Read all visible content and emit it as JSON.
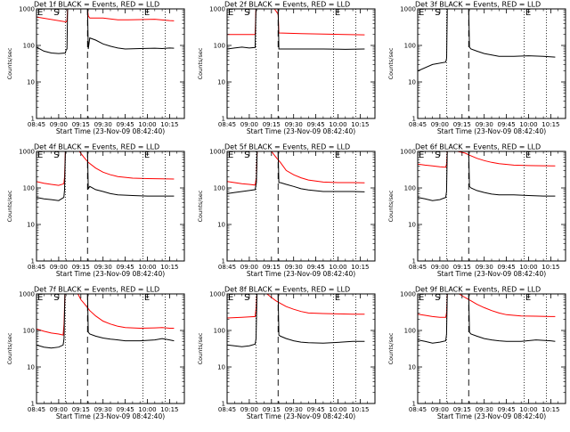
{
  "chart_data": [
    {
      "type": "line",
      "title": "Det 1f BLACK = Events, RED = LLD",
      "xlabel": "Start Time (23-Nov-09 08:42:40)",
      "ylabel": "Counts/sec",
      "yscale": "log",
      "ylim": [
        1,
        1000
      ],
      "xlim": [
        0,
        100
      ],
      "yticks": [
        "1",
        "10",
        "100",
        "1000"
      ],
      "xticks": [
        "08:45",
        "09:00",
        "09:15",
        "09:30",
        "09:45",
        "10:00",
        "10:15"
      ],
      "marks": [
        "E",
        "S",
        "E"
      ],
      "series": [
        {
          "name": "LLD",
          "color": "#ff0000",
          "x": [
            0,
            20,
            20.6,
            21,
            22,
            34.5,
            35,
            36,
            45,
            55,
            62,
            70,
            80,
            90,
            93
          ],
          "y": [
            600,
            440,
            480,
            1000,
            1000,
            1000,
            640,
            560,
            560,
            500,
            500,
            510,
            520,
            480,
            470
          ]
        },
        {
          "name": "Events",
          "color": "#000000",
          "x": [
            0,
            5,
            10,
            15,
            19.5,
            20,
            20.6,
            21,
            22,
            34.5,
            35,
            36,
            40,
            45,
            50,
            55,
            60,
            70,
            80,
            85,
            90,
            93
          ],
          "y": [
            90,
            70,
            62,
            60,
            62,
            75,
            80,
            1000,
            1000,
            1000,
            80,
            160,
            140,
            110,
            95,
            85,
            80,
            82,
            84,
            82,
            85,
            84
          ]
        }
      ]
    },
    {
      "type": "line",
      "title": "Det 2f BLACK = Events, RED = LLD",
      "xlabel": "Start Time (23-Nov-09 08:42:40)",
      "ylabel": "Counts/sec",
      "yscale": "log",
      "ylim": [
        1,
        1000
      ],
      "xlim": [
        0,
        100
      ],
      "yticks": [
        "1",
        "10",
        "100",
        "1000"
      ],
      "xticks": [
        "08:45",
        "09:00",
        "09:15",
        "09:30",
        "09:45",
        "10:00",
        "10:15"
      ],
      "marks": [
        "E",
        "S",
        "E"
      ],
      "series": [
        {
          "name": "LLD",
          "color": "#ff0000",
          "x": [
            0,
            19,
            19.5,
            25,
            26,
            32,
            34.5,
            35,
            50,
            65,
            80,
            93
          ],
          "y": [
            200,
            200,
            1000,
            1000,
            1000,
            1000,
            720,
            220,
            210,
            205,
            200,
            195
          ]
        },
        {
          "name": "Events",
          "color": "#000000",
          "x": [
            0,
            5,
            10,
            15,
            19,
            19.5,
            33,
            34.5,
            35,
            50,
            65,
            80,
            93
          ],
          "y": [
            80,
            85,
            90,
            85,
            88,
            1000,
            1000,
            1000,
            80,
            80,
            80,
            78,
            80
          ]
        }
      ]
    },
    {
      "type": "line",
      "title": "Det 3f BLACK = Events, RED = LLD",
      "xlabel": "Start Time (23-Nov-09 08:42:40)",
      "ylabel": "Counts/sec",
      "yscale": "log",
      "ylim": [
        1,
        1000
      ],
      "xlim": [
        0,
        100
      ],
      "yticks": [
        "1",
        "10",
        "100",
        "1000"
      ],
      "xticks": [
        "08:45",
        "09:00",
        "09:15",
        "09:30",
        "09:45",
        "10:00",
        "10:15"
      ],
      "marks": [
        "E",
        "S",
        "E"
      ],
      "series": [
        {
          "name": "LLD",
          "color": "#ff0000",
          "x": [
            0,
            20,
            35,
            60,
            80,
            93
          ],
          "y": [
            1000,
            1000,
            1000,
            1000,
            1000,
            1000
          ]
        },
        {
          "name": "Events",
          "color": "#000000",
          "x": [
            0,
            10,
            19,
            19.6,
            20,
            34.5,
            35,
            36,
            40,
            45,
            55,
            65,
            75,
            85,
            93
          ],
          "y": [
            20,
            30,
            35,
            45,
            1000,
            1000,
            90,
            80,
            70,
            60,
            50,
            50,
            52,
            50,
            48
          ]
        }
      ]
    },
    {
      "type": "line",
      "title": "Det 4f BLACK = Events, RED = LLD",
      "xlabel": "Start Time (23-Nov-09 08:42:40)",
      "ylabel": "Counts/sec",
      "yscale": "log",
      "ylim": [
        1,
        1000
      ],
      "xlim": [
        0,
        100
      ],
      "yticks": [
        "1",
        "10",
        "100",
        "1000"
      ],
      "xticks": [
        "08:45",
        "09:00",
        "09:15",
        "09:30",
        "09:45",
        "10:00",
        "10:15"
      ],
      "marks": [
        "E",
        "S",
        "E"
      ],
      "series": [
        {
          "name": "LLD",
          "color": "#ff0000",
          "x": [
            0,
            5,
            10,
            15,
            18.5,
            19,
            19.5,
            29,
            32,
            35,
            40,
            45,
            50,
            55,
            65,
            75,
            85,
            93
          ],
          "y": [
            150,
            135,
            125,
            118,
            130,
            200,
            1000,
            1000,
            700,
            500,
            350,
            270,
            230,
            205,
            185,
            180,
            178,
            175
          ]
        },
        {
          "name": "Events",
          "color": "#000000",
          "x": [
            0,
            5,
            10,
            15,
            18.5,
            19,
            19.5,
            34.5,
            35,
            36,
            40,
            45,
            50,
            55,
            65,
            75,
            85,
            93
          ],
          "y": [
            55,
            50,
            48,
            45,
            55,
            90,
            1000,
            1000,
            95,
            110,
            90,
            80,
            70,
            65,
            62,
            60,
            60,
            60
          ]
        }
      ]
    },
    {
      "type": "line",
      "title": "Det 5f BLACK = Events, RED = LLD",
      "xlabel": "Start Time (23-Nov-09 08:42:40)",
      "ylabel": "Counts/sec",
      "yscale": "log",
      "ylim": [
        1,
        1000
      ],
      "xlim": [
        0,
        100
      ],
      "yticks": [
        "1",
        "10",
        "100",
        "1000"
      ],
      "xticks": [
        "08:45",
        "09:00",
        "09:15",
        "09:30",
        "09:45",
        "10:00",
        "10:15"
      ],
      "marks": [
        "E",
        "S",
        "E"
      ],
      "series": [
        {
          "name": "LLD",
          "color": "#ff0000",
          "x": [
            0,
            5,
            10,
            15,
            19,
            19.8,
            20.3,
            30,
            33,
            36,
            40,
            45,
            50,
            55,
            65,
            75,
            85,
            93
          ],
          "y": [
            150,
            140,
            130,
            125,
            120,
            200,
            1000,
            1000,
            700,
            500,
            300,
            230,
            190,
            165,
            145,
            140,
            140,
            138
          ]
        },
        {
          "name": "Events",
          "color": "#000000",
          "x": [
            0,
            5,
            10,
            15,
            19,
            19.8,
            20.3,
            34.5,
            35,
            36,
            40,
            45,
            50,
            55,
            65,
            75,
            85,
            93
          ],
          "y": [
            70,
            75,
            80,
            85,
            90,
            140,
            1000,
            1000,
            140,
            140,
            125,
            110,
            95,
            88,
            80,
            80,
            80,
            78
          ]
        }
      ]
    },
    {
      "type": "line",
      "title": "Det 6f BLACK = Events, RED = LLD",
      "xlabel": "Start Time (23-Nov-09 08:42:40)",
      "ylabel": "Counts/sec",
      "yscale": "log",
      "ylim": [
        1,
        1000
      ],
      "xlim": [
        0,
        100
      ],
      "yticks": [
        "1",
        "10",
        "100",
        "1000"
      ],
      "xticks": [
        "08:45",
        "09:00",
        "09:15",
        "09:30",
        "09:45",
        "10:00",
        "10:15"
      ],
      "marks": [
        "E",
        "S",
        "E"
      ],
      "series": [
        {
          "name": "LLD",
          "color": "#ff0000",
          "x": [
            0,
            5,
            10,
            15,
            19,
            19.5,
            20,
            27,
            32,
            36,
            40,
            45,
            50,
            55,
            65,
            75,
            85,
            93
          ],
          "y": [
            450,
            420,
            400,
            380,
            370,
            450,
            1000,
            1000,
            900,
            760,
            650,
            560,
            500,
            460,
            420,
            410,
            405,
            400
          ]
        },
        {
          "name": "Events",
          "color": "#000000",
          "x": [
            0,
            5,
            10,
            15,
            19,
            19.5,
            20,
            34.5,
            35,
            36,
            40,
            45,
            50,
            55,
            65,
            75,
            85,
            93
          ],
          "y": [
            55,
            50,
            45,
            48,
            55,
            80,
            1000,
            1000,
            110,
            100,
            85,
            75,
            68,
            65,
            65,
            62,
            60,
            60
          ]
        }
      ]
    },
    {
      "type": "line",
      "title": "Det 7f BLACK = Events, RED = LLD",
      "xlabel": "Start Time (23-Nov-09 08:42:40)",
      "ylabel": "Counts/sec",
      "yscale": "log",
      "ylim": [
        1,
        1000
      ],
      "xlim": [
        0,
        100
      ],
      "yticks": [
        "1",
        "10",
        "100",
        "1000"
      ],
      "xticks": [
        "08:45",
        "09:00",
        "09:15",
        "09:30",
        "09:45",
        "10:00",
        "10:15"
      ],
      "marks": [
        "E",
        "S",
        "E"
      ],
      "series": [
        {
          "name": "LLD",
          "color": "#ff0000",
          "x": [
            0,
            5,
            10,
            15,
            18,
            18.6,
            19.2,
            28,
            30,
            33,
            36,
            40,
            45,
            50,
            55,
            60,
            70,
            80,
            85,
            90,
            93
          ],
          "y": [
            110,
            95,
            85,
            80,
            75,
            150,
            1000,
            1000,
            700,
            500,
            350,
            250,
            180,
            150,
            130,
            120,
            115,
            118,
            120,
            115,
            115
          ]
        },
        {
          "name": "Events",
          "color": "#000000",
          "x": [
            0,
            5,
            10,
            15,
            18,
            18.6,
            19.2,
            34.5,
            35,
            36,
            40,
            45,
            50,
            55,
            60,
            70,
            80,
            85,
            90,
            93
          ],
          "y": [
            40,
            35,
            33,
            35,
            40,
            60,
            1000,
            1000,
            90,
            80,
            70,
            62,
            58,
            55,
            52,
            52,
            55,
            60,
            55,
            52
          ]
        }
      ]
    },
    {
      "type": "line",
      "title": "Det 8f BLACK = Events, RED = LLD",
      "xlabel": "Start Time (23-Nov-09 08:42:40)",
      "ylabel": "Counts/sec",
      "yscale": "log",
      "ylim": [
        1,
        1000
      ],
      "xlim": [
        0,
        100
      ],
      "yticks": [
        "1",
        "10",
        "100",
        "1000"
      ],
      "xticks": [
        "08:45",
        "09:00",
        "09:15",
        "09:30",
        "09:45",
        "10:00",
        "10:15"
      ],
      "marks": [
        "E",
        "S",
        "E"
      ],
      "series": [
        {
          "name": "LLD",
          "color": "#ff0000",
          "x": [
            0,
            5,
            10,
            15,
            19,
            19.6,
            20.2,
            27,
            30,
            33,
            36,
            40,
            45,
            50,
            55,
            65,
            75,
            85,
            93
          ],
          "y": [
            220,
            225,
            230,
            235,
            240,
            400,
            1000,
            1000,
            800,
            650,
            550,
            450,
            380,
            330,
            300,
            290,
            285,
            280,
            280
          ]
        },
        {
          "name": "Events",
          "color": "#000000",
          "x": [
            0,
            5,
            10,
            15,
            19,
            19.6,
            20.2,
            34.5,
            35,
            36,
            40,
            45,
            50,
            55,
            65,
            75,
            85,
            93
          ],
          "y": [
            40,
            38,
            36,
            38,
            42,
            60,
            1000,
            1000,
            75,
            70,
            60,
            52,
            48,
            46,
            45,
            47,
            50,
            50
          ]
        }
      ]
    },
    {
      "type": "line",
      "title": "Det 9f BLACK = Events, RED = LLD",
      "xlabel": "Start Time (23-Nov-09 08:42:40)",
      "ylabel": "Counts/sec",
      "yscale": "log",
      "ylim": [
        1,
        1000
      ],
      "xlim": [
        0,
        100
      ],
      "yticks": [
        "1",
        "10",
        "100",
        "1000"
      ],
      "xticks": [
        "08:45",
        "09:00",
        "09:15",
        "09:30",
        "09:45",
        "10:00",
        "10:15"
      ],
      "marks": [
        "E",
        "S",
        "E"
      ],
      "series": [
        {
          "name": "LLD",
          "color": "#ff0000",
          "x": [
            0,
            5,
            10,
            15,
            19,
            19.5,
            20,
            28,
            32,
            36,
            40,
            45,
            50,
            55,
            60,
            70,
            80,
            90,
            93
          ],
          "y": [
            280,
            260,
            240,
            230,
            230,
            300,
            1000,
            1000,
            800,
            650,
            520,
            420,
            350,
            300,
            270,
            250,
            245,
            240,
            240
          ]
        },
        {
          "name": "Events",
          "color": "#000000",
          "x": [
            0,
            5,
            10,
            15,
            19,
            19.5,
            20,
            34.5,
            35,
            36,
            40,
            45,
            50,
            55,
            60,
            70,
            80,
            90,
            93
          ],
          "y": [
            55,
            50,
            45,
            48,
            52,
            80,
            1000,
            1000,
            90,
            80,
            70,
            60,
            55,
            52,
            50,
            50,
            55,
            52,
            50
          ]
        }
      ]
    }
  ]
}
